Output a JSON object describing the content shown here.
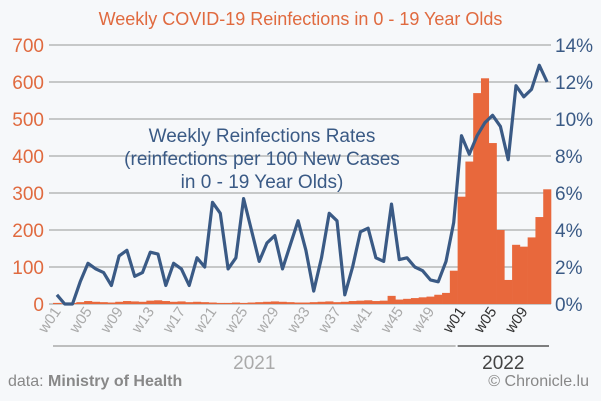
{
  "chart_data": {
    "type": "bar+line",
    "title": "Weekly COVID-19 Reinfections in 0 - 19 Year Olds",
    "annotation": [
      "Weekly Reinfections Rates",
      "(reinfections per 100 New Cases",
      "in 0 - 19 Year Olds)"
    ],
    "left_axis": {
      "ylim": [
        0,
        700
      ],
      "ticks": [
        "0",
        "100",
        "200",
        "300",
        "400",
        "500",
        "600",
        "700"
      ],
      "color": "#e06a3f"
    },
    "right_axis": {
      "ylim": [
        0,
        14
      ],
      "ticks": [
        "0%",
        "2%",
        "4%",
        "6%",
        "8%",
        "10%",
        "12%",
        "14%"
      ],
      "color": "#3a5a85"
    },
    "x_labels": [
      {
        "label": "w01",
        "index": 0,
        "year": "2021"
      },
      {
        "label": "w05",
        "index": 4,
        "year": "2021"
      },
      {
        "label": "w09",
        "index": 8,
        "year": "2021"
      },
      {
        "label": "w13",
        "index": 12,
        "year": "2021"
      },
      {
        "label": "w17",
        "index": 16,
        "year": "2021"
      },
      {
        "label": "w21",
        "index": 20,
        "year": "2021"
      },
      {
        "label": "w25",
        "index": 24,
        "year": "2021"
      },
      {
        "label": "w29",
        "index": 28,
        "year": "2021"
      },
      {
        "label": "w33",
        "index": 32,
        "year": "2021"
      },
      {
        "label": "w37",
        "index": 36,
        "year": "2021"
      },
      {
        "label": "w41",
        "index": 40,
        "year": "2021"
      },
      {
        "label": "w45",
        "index": 44,
        "year": "2021"
      },
      {
        "label": "w49",
        "index": 48,
        "year": "2021"
      },
      {
        "label": "w01",
        "index": 52,
        "year": "2022"
      },
      {
        "label": "w05",
        "index": 56,
        "year": "2022"
      },
      {
        "label": "w09",
        "index": 60,
        "year": "2022"
      }
    ],
    "years": [
      {
        "label": "2021",
        "start": 0,
        "end": 51
      },
      {
        "label": "2022",
        "start": 52,
        "end": 63
      }
    ],
    "series": [
      {
        "name": "Weekly Reinfections",
        "axis": "left",
        "type": "bar",
        "color": "#e8683c",
        "values": [
          3,
          2,
          3,
          5,
          8,
          6,
          5,
          4,
          6,
          8,
          7,
          6,
          9,
          10,
          8,
          6,
          7,
          5,
          6,
          5,
          4,
          3,
          3,
          4,
          3,
          4,
          5,
          6,
          7,
          6,
          5,
          4,
          4,
          5,
          6,
          7,
          5,
          6,
          8,
          9,
          10,
          8,
          9,
          22,
          12,
          14,
          16,
          18,
          20,
          25,
          30,
          90,
          290,
          385,
          570,
          610,
          435,
          200,
          65,
          160,
          155,
          180,
          235,
          310
        ]
      },
      {
        "name": "Weekly Reinfections Rates",
        "axis": "right",
        "type": "line",
        "color": "#3a5a85",
        "values": [
          0.5,
          0,
          0,
          1.2,
          2.2,
          1.9,
          1.7,
          1.0,
          2.6,
          2.9,
          1.5,
          1.7,
          2.8,
          2.7,
          1.0,
          2.2,
          1.9,
          1.0,
          2.5,
          2.0,
          5.5,
          4.9,
          1.9,
          2.5,
          5.7,
          4.0,
          2.3,
          3.3,
          3.7,
          1.9,
          3.2,
          4.5,
          2.9,
          0.7,
          2.5,
          4.9,
          4.5,
          0.5,
          2.0,
          3.9,
          4.1,
          2.5,
          2.3,
          5.4,
          2.4,
          2.5,
          2.0,
          1.8,
          1.3,
          1.2,
          2.3,
          4.4,
          9.1,
          8.1,
          9.1,
          9.8,
          10.2,
          9.6,
          7.8,
          11.8,
          11.2,
          11.6,
          12.9,
          12.0
        ]
      }
    ]
  },
  "footer": {
    "source_prefix": "data:",
    "source": "Ministry of Health",
    "credit": "© Chronicle.lu"
  }
}
